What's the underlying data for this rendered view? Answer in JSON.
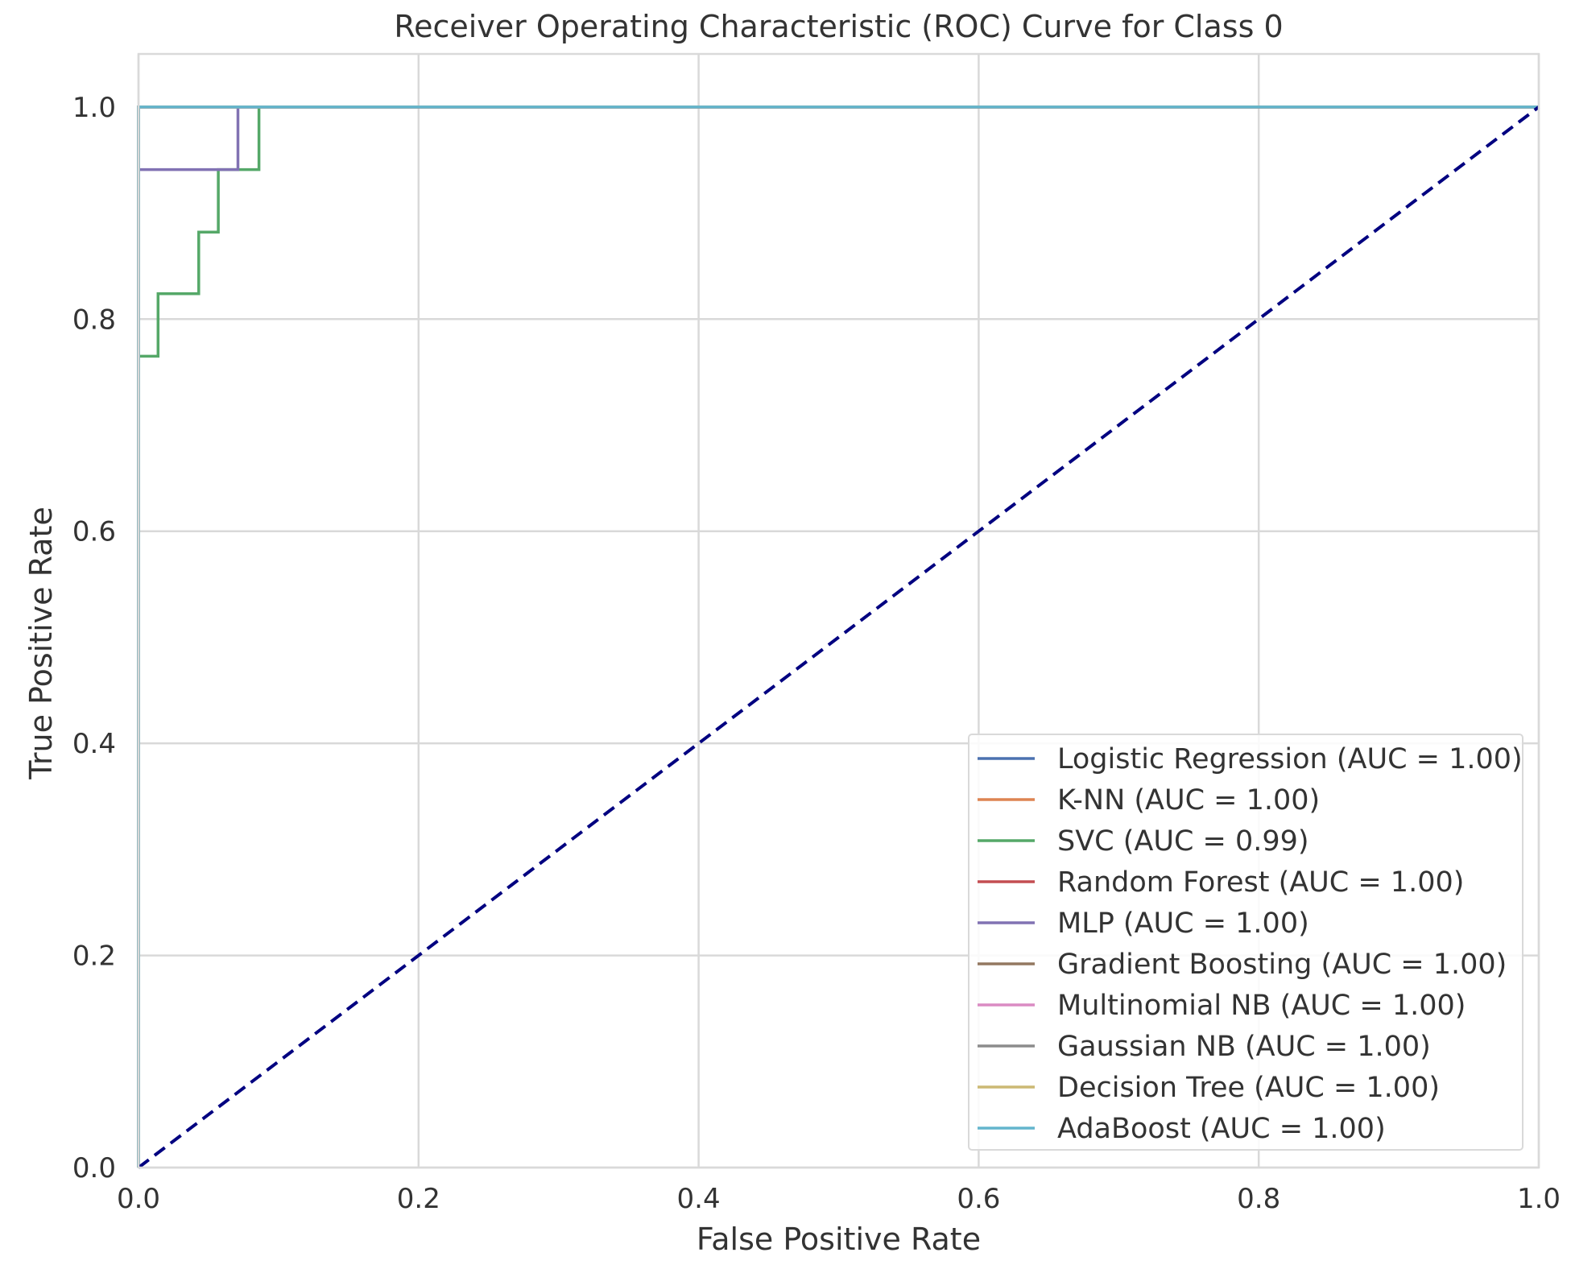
{
  "chart_data": {
    "type": "line",
    "title": "Receiver Operating Characteristic (ROC) Curve for Class 0",
    "xlabel": "False Positive Rate",
    "ylabel": "True Positive Rate",
    "xlim": [
      0.0,
      1.0
    ],
    "ylim": [
      0.0,
      1.05
    ],
    "xticks": [
      "0.0",
      "0.2",
      "0.4",
      "0.6",
      "0.8",
      "1.0"
    ],
    "yticks": [
      "0.0",
      "0.2",
      "0.4",
      "0.6",
      "0.8",
      "1.0"
    ],
    "grid": true,
    "legend_position": "lower-right",
    "series": [
      {
        "name": "Logistic Regression (AUC = 1.00)",
        "color": "#4c72b0",
        "x": [
          0.0,
          0.0,
          1.0
        ],
        "y": [
          0.0,
          1.0,
          1.0
        ]
      },
      {
        "name": "K-NN (AUC = 1.00)",
        "color": "#dd8452",
        "x": [
          0.0,
          0.0,
          1.0
        ],
        "y": [
          0.0,
          1.0,
          1.0
        ]
      },
      {
        "name": "SVC (AUC = 0.99)",
        "color": "#55a868",
        "x": [
          0.0,
          0.0,
          0.014,
          0.014,
          0.043,
          0.043,
          0.057,
          0.057,
          0.086,
          0.086,
          1.0
        ],
        "y": [
          0.0,
          0.765,
          0.765,
          0.824,
          0.824,
          0.882,
          0.882,
          0.941,
          0.941,
          1.0,
          1.0
        ]
      },
      {
        "name": "Random Forest (AUC = 1.00)",
        "color": "#c44e52",
        "x": [
          0.0,
          0.0,
          1.0
        ],
        "y": [
          0.0,
          1.0,
          1.0
        ]
      },
      {
        "name": "MLP (AUC = 1.00)",
        "color": "#8172b3",
        "x": [
          0.0,
          0.0,
          0.071,
          0.071,
          1.0
        ],
        "y": [
          0.0,
          0.941,
          0.941,
          1.0,
          1.0
        ]
      },
      {
        "name": "Gradient Boosting (AUC = 1.00)",
        "color": "#937860",
        "x": [
          0.0,
          0.0,
          1.0
        ],
        "y": [
          0.0,
          1.0,
          1.0
        ]
      },
      {
        "name": "Multinomial NB (AUC = 1.00)",
        "color": "#da8bc3",
        "x": [
          0.0,
          0.0,
          1.0
        ],
        "y": [
          0.0,
          1.0,
          1.0
        ]
      },
      {
        "name": "Gaussian NB (AUC = 1.00)",
        "color": "#8c8c8c",
        "x": [
          0.0,
          0.0,
          1.0
        ],
        "y": [
          0.0,
          1.0,
          1.0
        ]
      },
      {
        "name": "Decision Tree (AUC = 1.00)",
        "color": "#ccb974",
        "x": [
          0.0,
          0.0,
          1.0
        ],
        "y": [
          0.0,
          1.0,
          1.0
        ]
      },
      {
        "name": "AdaBoost (AUC = 1.00)",
        "color": "#64b5cd",
        "x": [
          0.0,
          0.0,
          1.0
        ],
        "y": [
          0.0,
          1.0,
          1.0
        ]
      }
    ],
    "reference_line": {
      "x": [
        0.0,
        1.0
      ],
      "y": [
        0.0,
        1.0
      ],
      "color": "#000080",
      "style": "dashed"
    }
  }
}
